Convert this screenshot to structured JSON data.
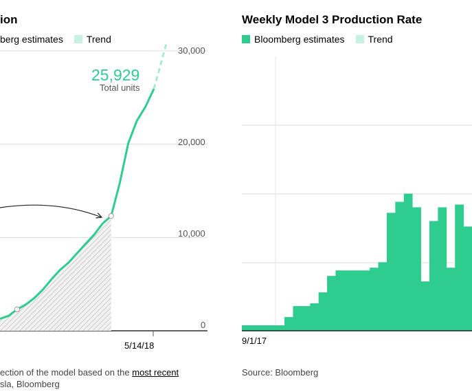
{
  "left_chart": {
    "title": "ion",
    "legend": [
      {
        "label": "berg estimates",
        "color": "#2ecc8f"
      },
      {
        "label": "Trend",
        "color": "#c6f1de"
      }
    ],
    "y_ticks": [
      "30,000",
      "20,000",
      "10,000",
      "0"
    ],
    "x_tick": "5/14/18",
    "callout": {
      "value": "25,929",
      "label": "Total units"
    },
    "note_line1_prefix": "ection of the model based on the ",
    "note_line1_link": "most recent",
    "note_line2": "sla, Bloomberg"
  },
  "right_chart": {
    "title": "Weekly Model 3 Production Rate",
    "legend": [
      {
        "label": "Bloomberg estimates",
        "color": "#2ecc8f"
      },
      {
        "label": "Trend",
        "color": "#c6f1de"
      }
    ],
    "x_tick": "9/1/17",
    "source": "Source: Bloomberg"
  },
  "chart_data": [
    {
      "type": "line",
      "title": "ion",
      "ylim": [
        0,
        30000
      ],
      "x_tick_labels": [
        "5/14/18"
      ],
      "y_tick_labels": [
        "0",
        "10,000",
        "20,000",
        "30,000"
      ],
      "series": [
        {
          "name": "berg estimates",
          "values": [
            1300,
            1600,
            2300,
            2800,
            3500,
            4400,
            5500,
            6500,
            7300,
            8300,
            9300,
            10300,
            11500,
            12300,
            15800,
            20100,
            22500,
            24000,
            25929
          ]
        },
        {
          "name": "Trend",
          "values": [
            25929,
            31000
          ]
        }
      ],
      "markers": [
        2300,
        12300
      ],
      "annotation": {
        "value": 25929,
        "text": "Total units"
      },
      "grid": true,
      "legend": "top-left"
    },
    {
      "type": "bar",
      "title": "Weekly Model 3 Production Rate",
      "x_tick_labels": [
        "9/1/17"
      ],
      "series": [
        {
          "name": "Bloomberg estimates",
          "values": [
            0.02,
            0.02,
            0.02,
            0.02,
            0.02,
            0.05,
            0.09,
            0.09,
            0.1,
            0.14,
            0.2,
            0.22,
            0.22,
            0.22,
            0.22,
            0.23,
            0.25,
            0.43,
            0.47,
            0.5,
            0.45,
            0.18,
            0.4,
            0.45,
            0.23,
            0.46,
            0.38
          ]
        }
      ],
      "grid": true,
      "legend": "top-left"
    }
  ]
}
